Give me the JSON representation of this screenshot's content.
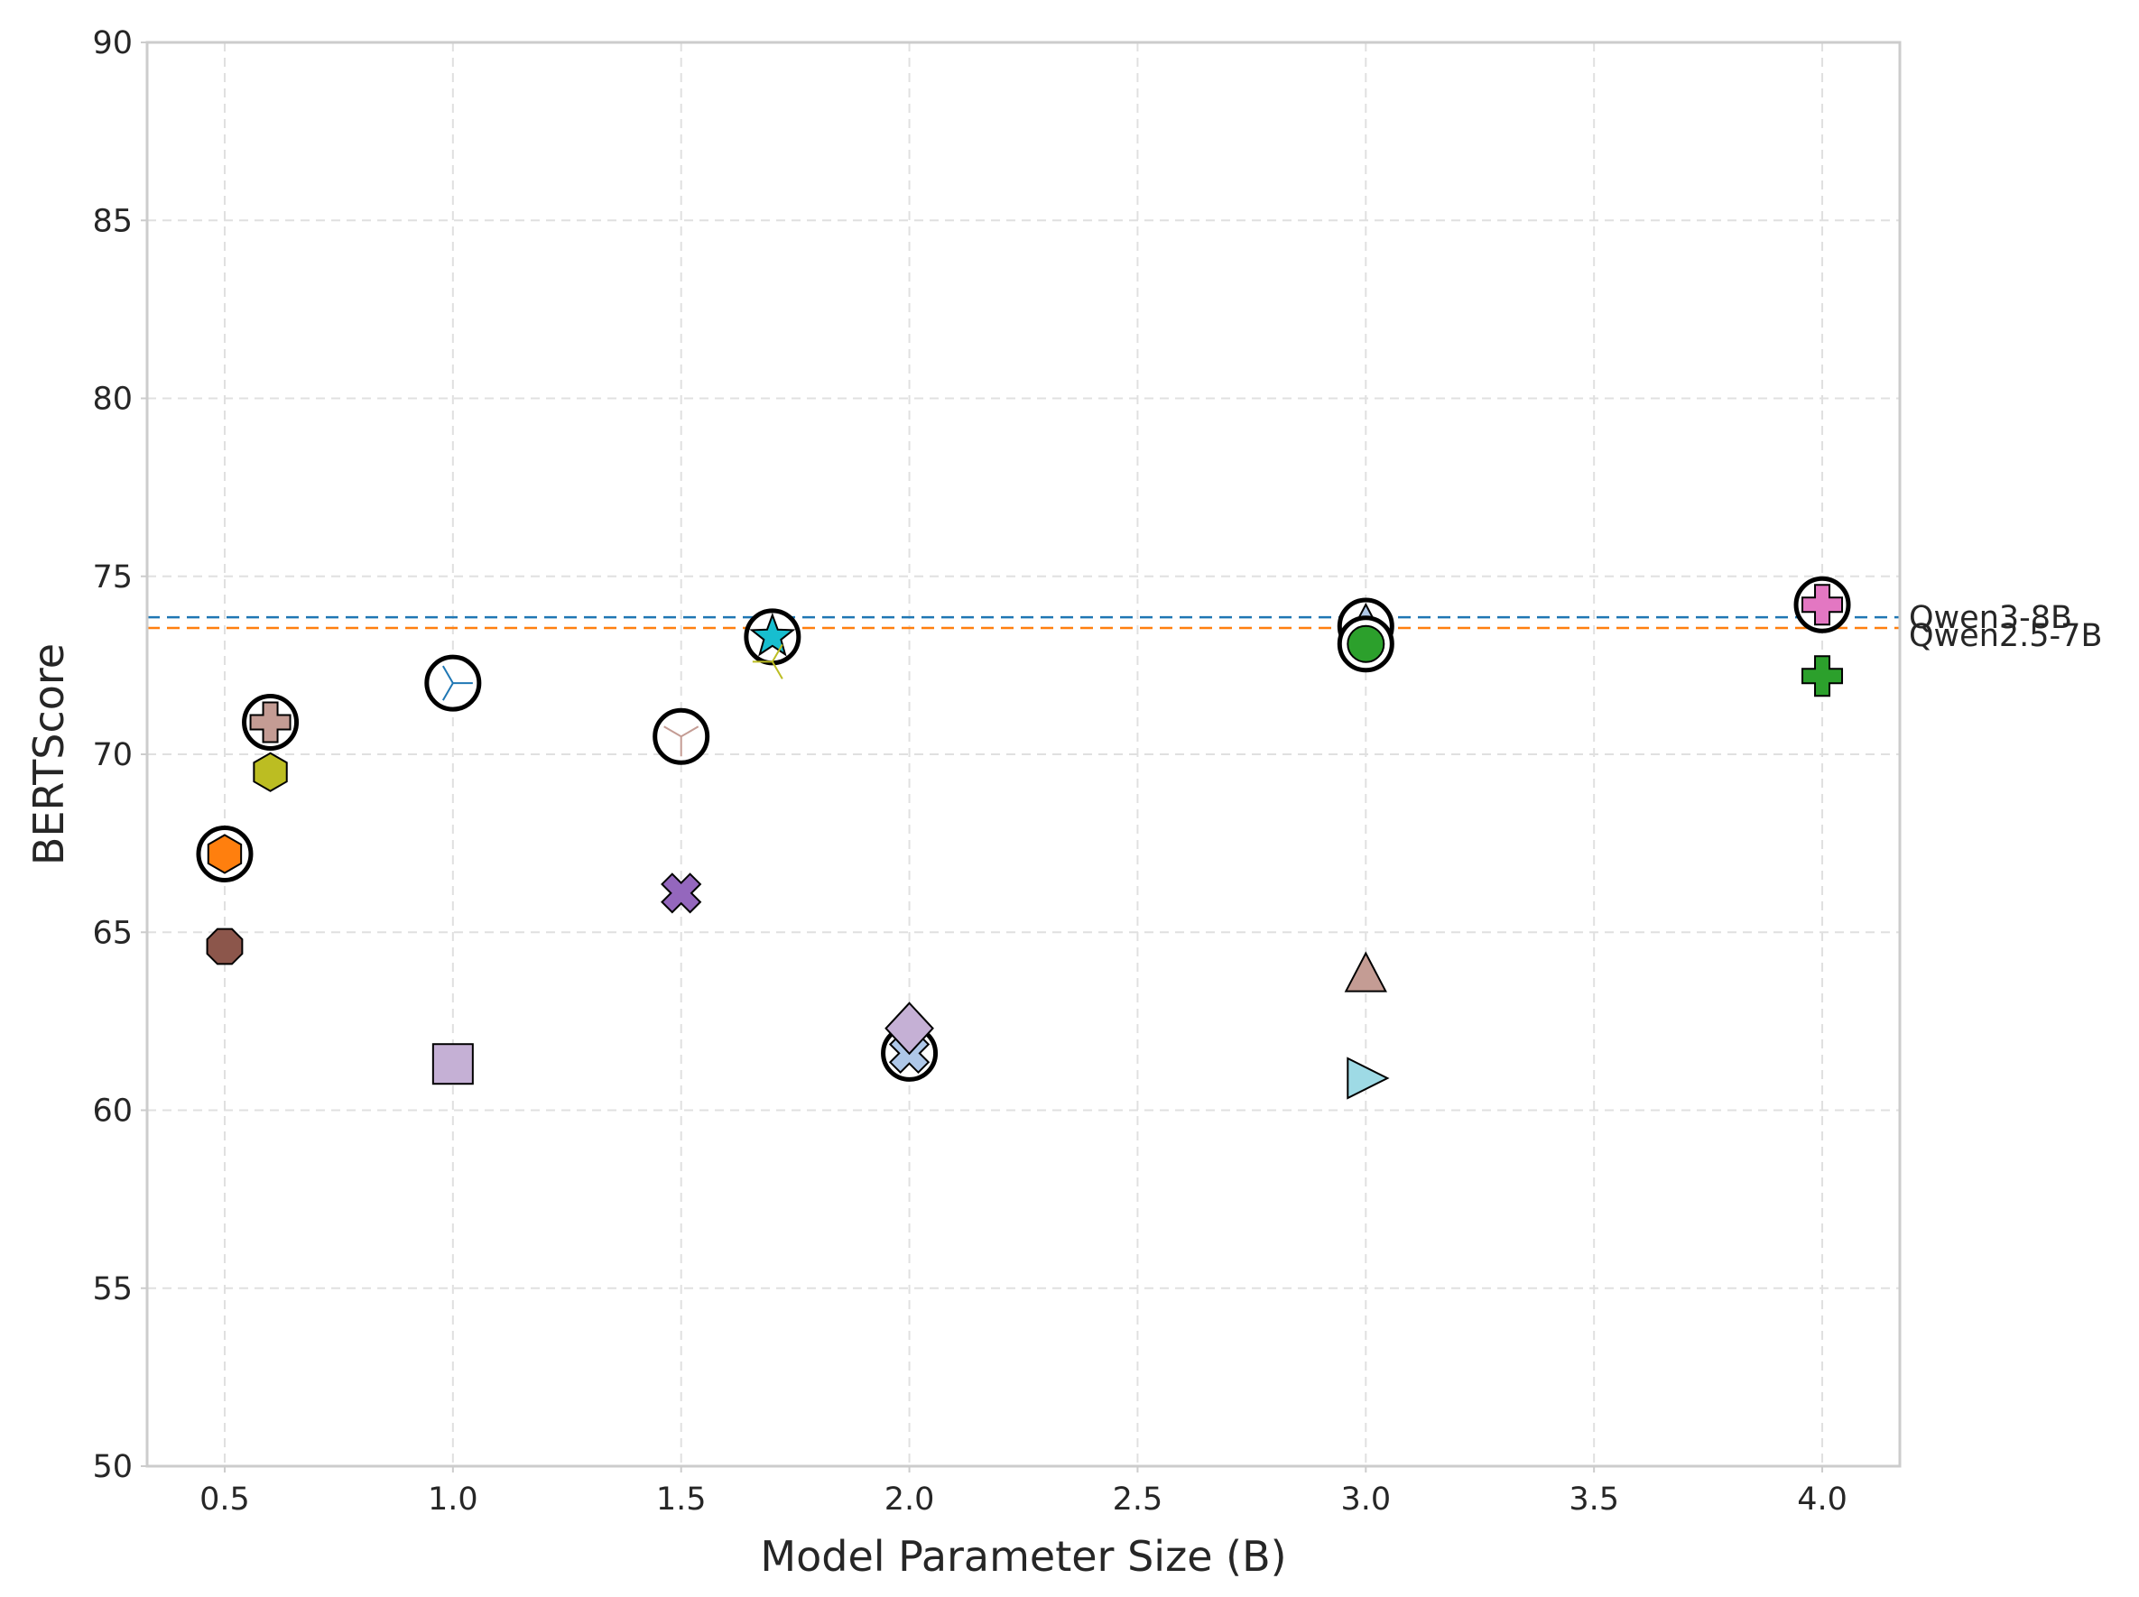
{
  "chart_data": {
    "type": "scatter",
    "title": "",
    "xlabel": "Model Parameter Size (B)",
    "ylabel": "BERTScore",
    "xlim": [
      0.33,
      4.17
    ],
    "ylim": [
      50,
      90
    ],
    "xticks": [
      0.5,
      1.0,
      1.5,
      2.0,
      2.5,
      3.0,
      3.5,
      4.0
    ],
    "xtick_labels": [
      "0.5",
      "1.0",
      "1.5",
      "2.0",
      "2.5",
      "3.0",
      "3.5",
      "4.0"
    ],
    "yticks": [
      50,
      55,
      60,
      65,
      70,
      75,
      80,
      85,
      90
    ],
    "ytick_labels": [
      "50",
      "55",
      "60",
      "65",
      "70",
      "75",
      "80",
      "85",
      "90"
    ],
    "grid": true,
    "legend": "none",
    "reference_lines": [
      {
        "label": "Qwen3-8B",
        "y": 73.85,
        "color": "#1f77b4"
      },
      {
        "label": "Qwen2.5-7B",
        "y": 73.55,
        "color": "#ff7f0e"
      }
    ],
    "points": [
      {
        "x": 0.5,
        "y": 67.2,
        "marker": "hexagon",
        "color": "#ff7f0e",
        "highlight": true
      },
      {
        "x": 0.5,
        "y": 64.6,
        "marker": "octagon",
        "color": "#8c564b",
        "highlight": false
      },
      {
        "x": 0.6,
        "y": 70.9,
        "marker": "plus-filled",
        "color": "#c49c94",
        "highlight": true
      },
      {
        "x": 0.6,
        "y": 69.5,
        "marker": "hexagon",
        "color": "#bcbd22",
        "highlight": false
      },
      {
        "x": 1.0,
        "y": 72.0,
        "marker": "tri-right",
        "color": "#1f77b4",
        "highlight": true
      },
      {
        "x": 1.0,
        "y": 61.3,
        "marker": "square",
        "color": "#c5b0d5",
        "highlight": false
      },
      {
        "x": 1.5,
        "y": 70.5,
        "marker": "tri-down",
        "color": "#c49c94",
        "highlight": true
      },
      {
        "x": 1.5,
        "y": 66.1,
        "marker": "x-filled",
        "color": "#9467bd",
        "highlight": false
      },
      {
        "x": 1.7,
        "y": 73.3,
        "marker": "star",
        "color": "#17becf",
        "highlight": true
      },
      {
        "x": 1.7,
        "y": 72.6,
        "marker": "tri-left",
        "color": "#bcbd22",
        "highlight": false
      },
      {
        "x": 2.0,
        "y": 61.6,
        "marker": "x-filled",
        "color": "#aec7e8",
        "highlight": true
      },
      {
        "x": 2.0,
        "y": 62.3,
        "marker": "diamond",
        "color": "#c5b0d5",
        "highlight": false
      },
      {
        "x": 3.0,
        "y": 73.6,
        "marker": "triangle-up",
        "color": "#aec7e8",
        "highlight": true
      },
      {
        "x": 3.0,
        "y": 73.1,
        "marker": "circle",
        "color": "#2ca02c",
        "highlight": true
      },
      {
        "x": 3.0,
        "y": 63.8,
        "marker": "triangle-up",
        "color": "#c49c94",
        "highlight": false
      },
      {
        "x": 3.0,
        "y": 60.9,
        "marker": "triangle-right",
        "color": "#9edae5",
        "highlight": false
      },
      {
        "x": 4.0,
        "y": 74.2,
        "marker": "plus-filled",
        "color": "#e377c2",
        "highlight": true
      },
      {
        "x": 4.0,
        "y": 72.2,
        "marker": "plus-filled",
        "color": "#2ca02c",
        "highlight": false
      }
    ]
  }
}
